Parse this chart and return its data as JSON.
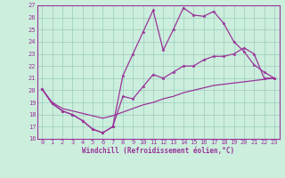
{
  "xlabel": "Windchill (Refroidissement éolien,°C)",
  "bg_color": "#cceedd",
  "line_color": "#993399",
  "grid_color": "#99ccbb",
  "xlim": [
    -0.5,
    23.5
  ],
  "ylim": [
    16,
    27
  ],
  "yticks": [
    16,
    17,
    18,
    19,
    20,
    21,
    22,
    23,
    24,
    25,
    26,
    27
  ],
  "xticks": [
    0,
    1,
    2,
    3,
    4,
    5,
    6,
    7,
    8,
    9,
    10,
    11,
    12,
    13,
    14,
    15,
    16,
    17,
    18,
    19,
    20,
    21,
    22,
    23
  ],
  "series1_x": [
    0,
    1,
    2,
    3,
    4,
    5,
    6,
    7,
    8,
    9,
    10,
    11,
    12,
    13,
    14,
    15,
    16,
    17,
    18,
    19,
    20,
    21,
    22,
    23
  ],
  "series1_y": [
    20.1,
    18.9,
    18.3,
    18.0,
    17.5,
    16.8,
    16.5,
    17.0,
    21.2,
    23.0,
    24.8,
    26.6,
    23.3,
    25.0,
    26.8,
    26.2,
    26.1,
    26.5,
    25.5,
    24.0,
    23.2,
    22.1,
    21.5,
    21.0
  ],
  "series2_x": [
    0,
    1,
    2,
    3,
    4,
    5,
    6,
    7,
    8,
    9,
    10,
    11,
    12,
    13,
    14,
    15,
    16,
    17,
    18,
    19,
    20,
    21,
    22,
    23
  ],
  "series2_y": [
    20.1,
    18.9,
    18.3,
    18.0,
    17.5,
    16.8,
    16.5,
    17.0,
    19.5,
    19.3,
    20.3,
    21.3,
    21.0,
    21.5,
    22.0,
    22.0,
    22.5,
    22.8,
    22.8,
    23.0,
    23.5,
    23.0,
    21.0,
    21.0
  ],
  "series3_x": [
    0,
    1,
    2,
    3,
    4,
    5,
    6,
    7,
    8,
    9,
    10,
    11,
    12,
    13,
    14,
    15,
    16,
    17,
    18,
    19,
    20,
    21,
    22,
    23
  ],
  "series3_y": [
    20.1,
    19.0,
    18.5,
    18.3,
    18.1,
    17.9,
    17.7,
    17.9,
    18.2,
    18.5,
    18.8,
    19.0,
    19.3,
    19.5,
    19.8,
    20.0,
    20.2,
    20.4,
    20.5,
    20.6,
    20.7,
    20.8,
    20.9,
    21.0
  ],
  "tick_fontsize": 5,
  "xlabel_fontsize": 5.5
}
